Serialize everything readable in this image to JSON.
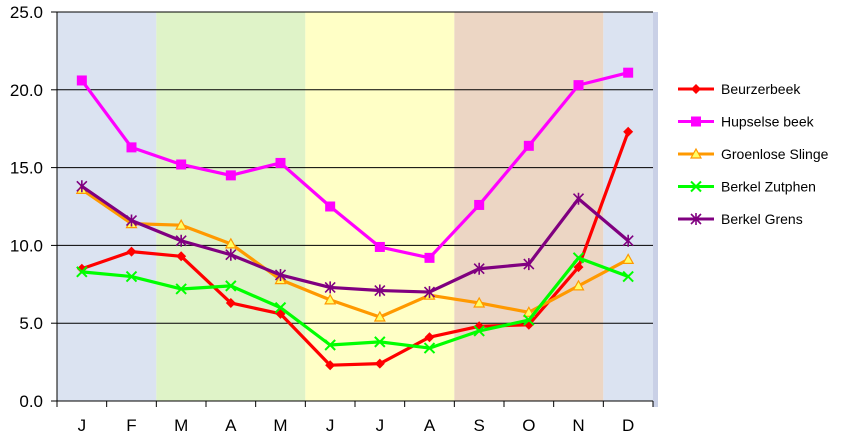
{
  "chart_data": {
    "type": "line",
    "title": "",
    "xlabel": "",
    "ylabel": "",
    "categories": [
      "J",
      "F",
      "M",
      "A",
      "M",
      "J",
      "J",
      "A",
      "S",
      "O",
      "N",
      "D"
    ],
    "ylim": [
      0,
      25
    ],
    "yticks": [
      "0.0",
      "5.0",
      "10.0",
      "15.0",
      "20.0",
      "25.0"
    ],
    "grid": "horizontal",
    "legend_position": "right",
    "season_bands": [
      {
        "from": 0,
        "to": 2,
        "color": "#dbe3f1"
      },
      {
        "from": 2,
        "to": 5,
        "color": "#dff3c8"
      },
      {
        "from": 5,
        "to": 8,
        "color": "#ffffc6"
      },
      {
        "from": 8,
        "to": 11,
        "color": "#ecd6c4"
      },
      {
        "from": 11,
        "to": 12,
        "color": "#dbe3f1"
      }
    ],
    "series": [
      {
        "name": "Beurzerbeek",
        "color": "#ff0000",
        "marker": "diamond",
        "values": [
          8.5,
          9.6,
          9.3,
          6.3,
          5.6,
          2.3,
          2.4,
          4.1,
          4.8,
          4.9,
          8.6,
          17.3
        ]
      },
      {
        "name": "Hupselse beek",
        "color": "#ff00ff",
        "marker": "square",
        "values": [
          20.6,
          16.3,
          15.2,
          14.5,
          15.3,
          12.5,
          9.9,
          9.2,
          12.6,
          16.4,
          20.3,
          21.1
        ]
      },
      {
        "name": "Groenlose Slinge",
        "color": "#ff9900",
        "marker": "triangle",
        "values": [
          13.6,
          11.4,
          11.3,
          10.1,
          7.8,
          6.5,
          5.4,
          6.8,
          6.3,
          5.7,
          7.4,
          9.1
        ]
      },
      {
        "name": "Berkel Zutphen",
        "color": "#00ff00",
        "marker": "x",
        "values": [
          8.3,
          8.0,
          7.2,
          7.4,
          6.0,
          3.6,
          3.8,
          3.4,
          4.5,
          5.2,
          9.2,
          8.0
        ]
      },
      {
        "name": "Berkel Grens",
        "color": "#800080",
        "marker": "star",
        "values": [
          13.8,
          11.6,
          10.3,
          9.4,
          8.1,
          7.3,
          7.1,
          7.0,
          8.5,
          8.8,
          13.0,
          10.3
        ]
      }
    ]
  }
}
